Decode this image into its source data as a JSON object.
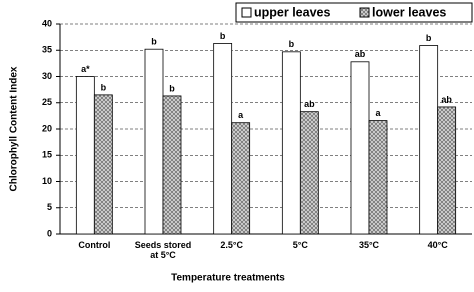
{
  "chart_data": {
    "type": "bar",
    "x_label": "Temperature treatments",
    "y_label": "Chlorophyll Content Index",
    "categories": [
      "Control",
      "Seeds stored at 5°C",
      "2.5°C",
      "5°C",
      "35°C",
      "40°C"
    ],
    "series": [
      {
        "name": "upper leaves",
        "color": "#ffffff",
        "hatch": false,
        "values": [
          30,
          35.2,
          36.3,
          34.7,
          32.8,
          35.9
        ],
        "letters": [
          "a*",
          "b",
          "b",
          "b",
          "ab",
          "b"
        ]
      },
      {
        "name": "lower leaves",
        "color": "#d8d8d8",
        "hatch": true,
        "values": [
          26.5,
          26.3,
          21.2,
          23.3,
          21.6,
          24.2
        ],
        "letters": [
          "b",
          "b",
          "a",
          "ab",
          "a",
          "ab"
        ]
      }
    ],
    "ylim": [
      0,
      40
    ],
    "yticks": [
      0,
      5,
      10,
      15,
      20,
      25,
      30,
      35,
      40
    ],
    "grid": true,
    "legend": "top-right"
  }
}
